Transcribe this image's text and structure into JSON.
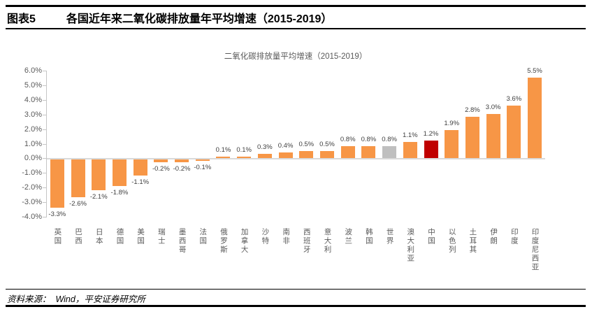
{
  "header": {
    "figure_label": "图表5",
    "title": "各国近年来二氧化碳排放量年平均增速（2015-2019）"
  },
  "chart_data": {
    "type": "bar",
    "title": "二氧化碳排放量平均增速（2015-2019）",
    "categories": [
      "英国",
      "巴西",
      "日本",
      "德国",
      "美国",
      "瑞士",
      "墨西哥",
      "法国",
      "俄罗斯",
      "加拿大",
      "沙特",
      "南非",
      "西班牙",
      "意大利",
      "波兰",
      "韩国",
      "世界",
      "澳大利亚",
      "中国",
      "以色列",
      "土耳其",
      "伊朗",
      "印度",
      "印度尼西亚"
    ],
    "values": [
      -3.3,
      -2.6,
      -2.1,
      -1.8,
      -1.1,
      -0.2,
      -0.2,
      -0.1,
      0.1,
      0.1,
      0.3,
      0.4,
      0.5,
      0.5,
      0.8,
      0.8,
      0.8,
      1.1,
      1.2,
      1.9,
      2.8,
      3.0,
      3.6,
      5.5
    ],
    "value_labels": [
      "-3.3%",
      "-2.6%",
      "-2.1%",
      "-1.8%",
      "-1.1%",
      "-0.2%",
      "-0.2%",
      "-0.1%",
      "0.1%",
      "0.1%",
      "0.3%",
      "0.4%",
      "0.5%",
      "0.5%",
      "0.8%",
      "0.8%",
      "0.8%",
      "1.1%",
      "1.2%",
      "1.9%",
      "2.8%",
      "3.0%",
      "3.6%",
      "5.5%"
    ],
    "bar_colors": [
      "#F79646",
      "#F79646",
      "#F79646",
      "#F79646",
      "#F79646",
      "#F79646",
      "#F79646",
      "#F79646",
      "#F79646",
      "#F79646",
      "#F79646",
      "#F79646",
      "#F79646",
      "#F79646",
      "#F79646",
      "#F79646",
      "#BFBFBF",
      "#F79646",
      "#C00000",
      "#F79646",
      "#F79646",
      "#F79646",
      "#F79646",
      "#F79646"
    ],
    "colors": {
      "default": "#F79646",
      "world_series": "#BFBFBF",
      "china_highlight": "#C00000",
      "axis": "#C6C6C6",
      "zero_line": "#D9D9D9",
      "tick_text": "#595959",
      "data_label": "#404040"
    },
    "ylim": [
      -4.0,
      6.0
    ],
    "yticks": [
      "6.0%",
      "5.0%",
      "4.0%",
      "3.0%",
      "2.0%",
      "1.0%",
      "0.0%",
      "-1.0%",
      "-2.0%",
      "-3.0%",
      "-4.0%"
    ],
    "grid": false,
    "legend": "none",
    "xlabel": "",
    "ylabel": ""
  },
  "footer": {
    "source_text": "资料来源：  Wind，平安证券研究所"
  }
}
